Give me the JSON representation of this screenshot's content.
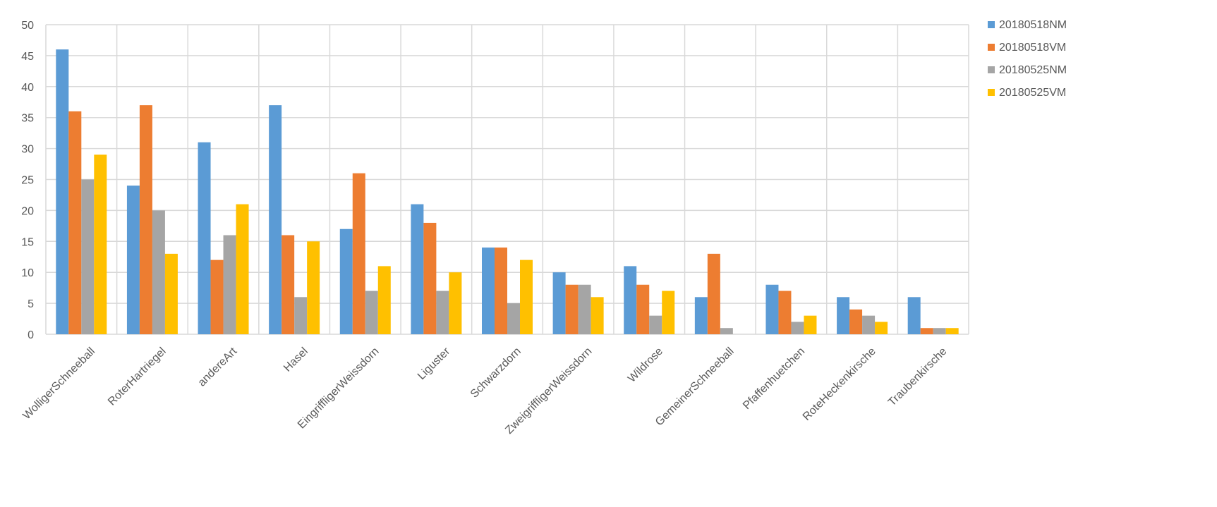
{
  "chart_data": {
    "type": "bar",
    "title": "",
    "xlabel": "",
    "ylabel": "",
    "ylim": [
      0,
      50
    ],
    "yticks": [
      0,
      5,
      10,
      15,
      20,
      25,
      30,
      35,
      40,
      45,
      50
    ],
    "grid": true,
    "legend_position": "right",
    "categories": [
      "WolligerSchneeball",
      "RoterHartriegel",
      "andereArt",
      "Hasel",
      "EingriffligerWeissdorn",
      "Liguster",
      "Schwarzdorn",
      "ZweigriffligerWeissdorn",
      "Wildrose",
      "GemeinerSchneeball",
      "Pfaffenhuetchen",
      "RoteHeckenkirsche",
      "Traubenkirsche"
    ],
    "series": [
      {
        "name": "20180518NM",
        "color": "#5B9BD5",
        "values": [
          46,
          24,
          31,
          37,
          17,
          21,
          14,
          10,
          11,
          6,
          8,
          6,
          6
        ]
      },
      {
        "name": "20180518VM",
        "color": "#ED7D31",
        "values": [
          36,
          37,
          12,
          16,
          26,
          18,
          14,
          8,
          8,
          13,
          7,
          4,
          1
        ]
      },
      {
        "name": "20180525NM",
        "color": "#A5A5A5",
        "values": [
          25,
          20,
          16,
          6,
          7,
          7,
          5,
          8,
          3,
          1,
          2,
          3,
          1
        ]
      },
      {
        "name": "20180525VM",
        "color": "#FFC000",
        "values": [
          29,
          13,
          21,
          15,
          11,
          10,
          12,
          6,
          7,
          0,
          3,
          2,
          1
        ]
      }
    ]
  }
}
